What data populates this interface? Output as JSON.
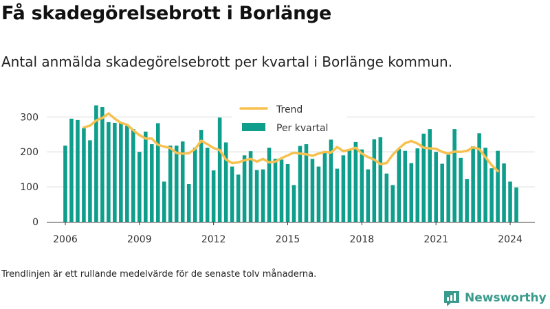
{
  "title": "Få skadegörelsebrott i Borlänge",
  "subtitle": "Antal anmälda skadegörelsebrott per kvartal i Borlänge kommun.",
  "footnote": "Trendlinjen är ett rullande medelvärde för de senaste tolv månaderna.",
  "brand": {
    "name": "Newsworthy",
    "color": "#3a9a8c"
  },
  "chart_data": {
    "type": "bar",
    "grid": true,
    "legend_position": "top-center",
    "xlim": [
      2005.25,
      2025.0
    ],
    "ylim": [
      0,
      330
    ],
    "x_ticks": [
      {
        "value": 2006,
        "label": "2006"
      },
      {
        "value": 2009,
        "label": "2009"
      },
      {
        "value": 2012,
        "label": "2012"
      },
      {
        "value": 2015,
        "label": "2015"
      },
      {
        "value": 2018,
        "label": "2018"
      },
      {
        "value": 2021,
        "label": "2021"
      },
      {
        "value": 2024,
        "label": "2024"
      }
    ],
    "y_ticks": [
      {
        "value": 0,
        "label": "0"
      },
      {
        "value": 100,
        "label": "100"
      },
      {
        "value": 200,
        "label": "200"
      },
      {
        "value": 300,
        "label": "300"
      }
    ],
    "series": [
      {
        "name": "Per kvartal",
        "kind": "bar",
        "color": "#0f9e8c",
        "x_start": 2006.0,
        "step": 0.25,
        "values": [
          218,
          295,
          291,
          268,
          233,
          333,
          328,
          285,
          283,
          285,
          275,
          265,
          200,
          258,
          222,
          282,
          115,
          218,
          218,
          230,
          108,
          212,
          263,
          212,
          147,
          298,
          227,
          158,
          135,
          190,
          202,
          148,
          150,
          212,
          180,
          178,
          165,
          105,
          217,
          222,
          180,
          158,
          200,
          235,
          152,
          190,
          207,
          228,
          207,
          150,
          236,
          242,
          138,
          105,
          208,
          203,
          168,
          210,
          252,
          265,
          200,
          166,
          192,
          265,
          183,
          122,
          216,
          253,
          212,
          153,
          203,
          167,
          115,
          98
        ]
      },
      {
        "name": "Trend",
        "kind": "line",
        "color": "#f7c04f",
        "x_start": 2006.75,
        "step": 0.25,
        "values": [
          270,
          275,
          290,
          297,
          310,
          295,
          283,
          278,
          262,
          248,
          238,
          238,
          220,
          215,
          211,
          197,
          195,
          196,
          208,
          232,
          222,
          211,
          205,
          178,
          168,
          170,
          176,
          180,
          172,
          180,
          170,
          172,
          182,
          190,
          198,
          195,
          193,
          189,
          195,
          200,
          198,
          214,
          202,
          206,
          212,
          195,
          185,
          178,
          165,
          168,
          192,
          210,
          225,
          231,
          224,
          212,
          210,
          209,
          200,
          195,
          201,
          200,
          203,
          213,
          208,
          185,
          162,
          145
        ]
      }
    ]
  }
}
